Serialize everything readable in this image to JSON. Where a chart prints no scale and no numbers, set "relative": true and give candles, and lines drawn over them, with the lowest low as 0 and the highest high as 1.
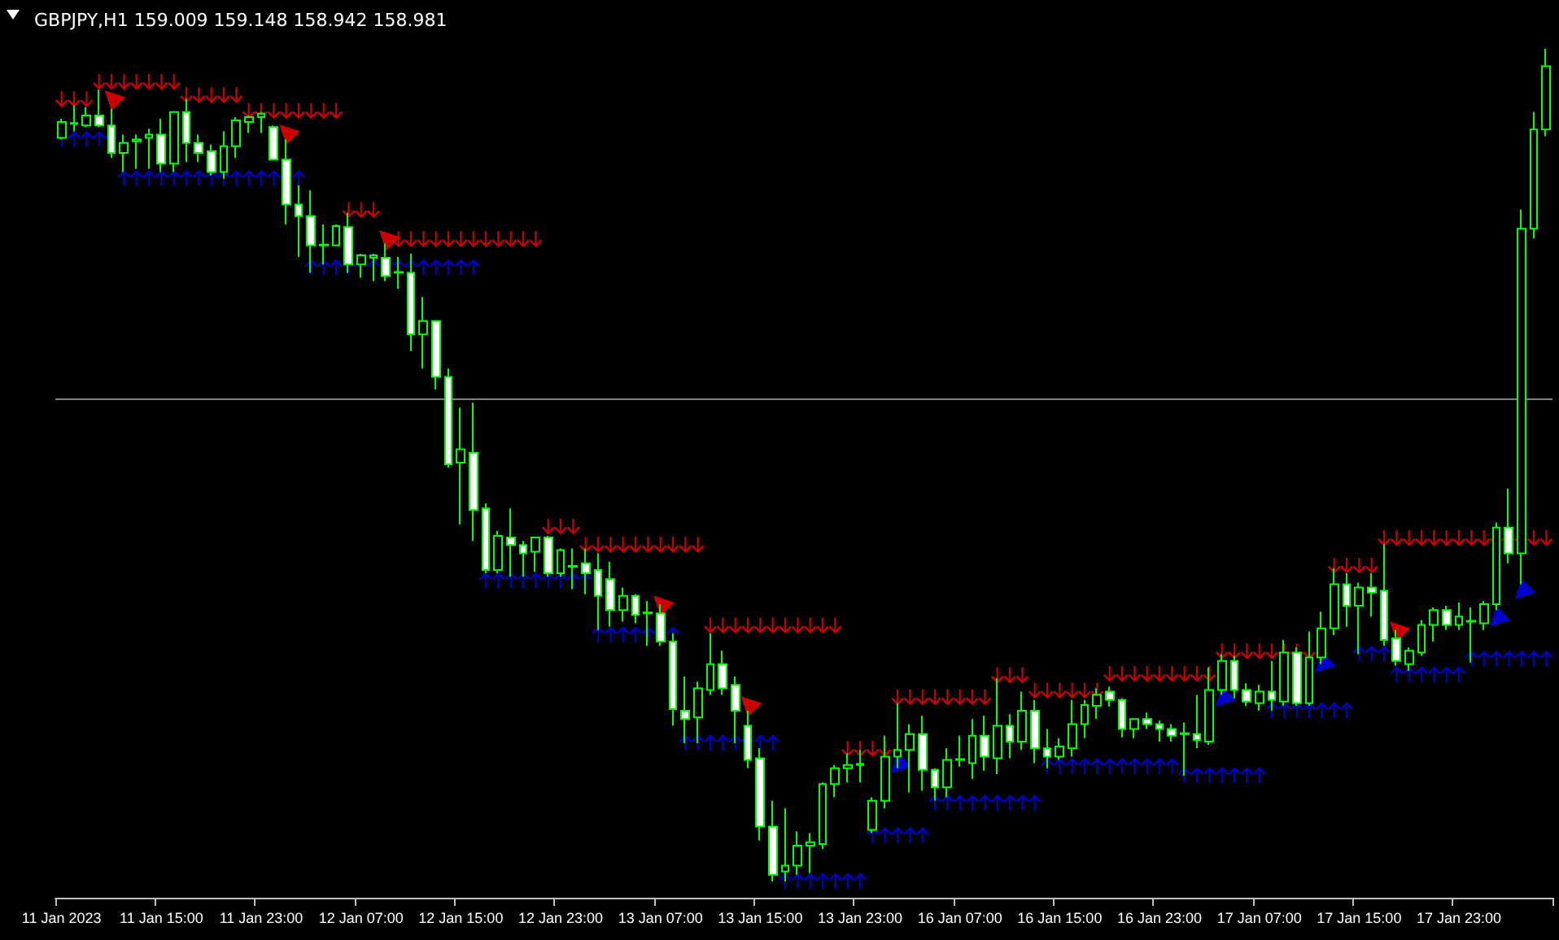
{
  "chart_data": {
    "type": "candlestick",
    "title": "GBPJPY,H1 159.009 159.148 158.942 158.981",
    "relative": true,
    "color": "#00ff00",
    "categories": [
      "11 Jan 2023",
      null,
      null,
      null,
      null,
      null,
      null,
      null,
      "11 Jan 15:00",
      null,
      null,
      null,
      null,
      null,
      null,
      null,
      "11 Jan 23:00",
      null,
      null,
      null,
      null,
      null,
      null,
      null,
      "12 Jan 07:00",
      null,
      null,
      null,
      null,
      null,
      null,
      null,
      "12 Jan 15:00",
      null,
      null,
      null,
      null,
      null,
      null,
      null,
      "12 Jan 23:00",
      null,
      null,
      null,
      null,
      null,
      null,
      null,
      "13 Jan 07:00",
      null,
      null,
      null,
      null,
      null,
      null,
      null,
      "13 Jan 15:00",
      null,
      null,
      null,
      null,
      null,
      null,
      null,
      "13 Jan 23:00",
      null,
      null,
      null,
      null,
      null,
      null,
      null,
      "16 Jan 07:00",
      null,
      null,
      null,
      null,
      null,
      null,
      null,
      "16 Jan 15:00",
      null,
      null,
      null,
      null,
      null,
      null,
      null,
      "16 Jan 23:00",
      null,
      null,
      null,
      null,
      null,
      null,
      null,
      "17 Jan 07:00",
      null,
      null,
      null,
      null,
      null,
      null,
      null,
      "17 Jan 15:00",
      null,
      null,
      null,
      null,
      null,
      null,
      null,
      "17 Jan 23:00",
      null,
      null,
      null,
      null,
      null,
      null,
      null
    ],
    "ohlc": [
      [
        0.893,
        0.916,
        0.891,
        0.912
      ],
      [
        0.91,
        0.932,
        0.901,
        0.911
      ],
      [
        0.908,
        0.93,
        0.906,
        0.92
      ],
      [
        0.92,
        0.951,
        0.906,
        0.908
      ],
      [
        0.908,
        0.928,
        0.869,
        0.875
      ],
      [
        0.875,
        0.897,
        0.852,
        0.887
      ],
      [
        0.889,
        0.897,
        0.856,
        0.891
      ],
      [
        0.893,
        0.904,
        0.856,
        0.897
      ],
      [
        0.897,
        0.916,
        0.852,
        0.862
      ],
      [
        0.862,
        0.924,
        0.852,
        0.924
      ],
      [
        0.924,
        0.94,
        0.864,
        0.887
      ],
      [
        0.887,
        0.897,
        0.864,
        0.875
      ],
      [
        0.877,
        0.885,
        0.848,
        0.852
      ],
      [
        0.852,
        0.901,
        0.844,
        0.883
      ],
      [
        0.883,
        0.918,
        0.869,
        0.914
      ],
      [
        0.912,
        0.92,
        0.899,
        0.918
      ],
      [
        0.918,
        0.924,
        0.899,
        0.922
      ],
      [
        0.906,
        0.908,
        0.867,
        0.867
      ],
      [
        0.867,
        0.891,
        0.789,
        0.813
      ],
      [
        0.813,
        0.836,
        0.75,
        0.799
      ],
      [
        0.799,
        0.83,
        0.731,
        0.764
      ],
      [
        0.764,
        0.789,
        0.741,
        0.765
      ],
      [
        0.764,
        0.789,
        0.764,
        0.787
      ],
      [
        0.786,
        0.803,
        0.731,
        0.741
      ],
      [
        0.741,
        0.754,
        0.725,
        0.752
      ],
      [
        0.749,
        0.754,
        0.721,
        0.752
      ],
      [
        0.749,
        0.766,
        0.721,
        0.727
      ],
      [
        0.731,
        0.75,
        0.712,
        0.732
      ],
      [
        0.731,
        0.754,
        0.637,
        0.657
      ],
      [
        0.657,
        0.702,
        0.616,
        0.673
      ],
      [
        0.673,
        0.674,
        0.591,
        0.606
      ],
      [
        0.606,
        0.616,
        0.497,
        0.501
      ],
      [
        0.503,
        0.569,
        0.429,
        0.519
      ],
      [
        0.515,
        0.575,
        0.409,
        0.446
      ],
      [
        0.448,
        0.454,
        0.37,
        0.374
      ],
      [
        0.374,
        0.421,
        0.37,
        0.415
      ],
      [
        0.413,
        0.448,
        0.366,
        0.404
      ],
      [
        0.404,
        0.409,
        0.366,
        0.394
      ],
      [
        0.396,
        0.413,
        0.372,
        0.413
      ],
      [
        0.413,
        0.415,
        0.366,
        0.37
      ],
      [
        0.37,
        0.4,
        0.366,
        0.398
      ],
      [
        0.378,
        0.4,
        0.351,
        0.379
      ],
      [
        0.382,
        0.4,
        0.345,
        0.37
      ],
      [
        0.374,
        0.394,
        0.302,
        0.343
      ],
      [
        0.363,
        0.384,
        0.306,
        0.326
      ],
      [
        0.326,
        0.353,
        0.312,
        0.343
      ],
      [
        0.343,
        0.345,
        0.31,
        0.32
      ],
      [
        0.322,
        0.337,
        0.283,
        0.323
      ],
      [
        0.322,
        0.333,
        0.283,
        0.288
      ],
      [
        0.288,
        0.298,
        0.187,
        0.207
      ],
      [
        0.205,
        0.246,
        0.166,
        0.195
      ],
      [
        0.197,
        0.24,
        0.166,
        0.232
      ],
      [
        0.23,
        0.298,
        0.224,
        0.261
      ],
      [
        0.261,
        0.277,
        0.224,
        0.232
      ],
      [
        0.236,
        0.246,
        0.166,
        0.205
      ],
      [
        0.187,
        0.205,
        0.136,
        0.146
      ],
      [
        0.148,
        0.16,
        0.049,
        0.066
      ],
      [
        0.066,
        0.097,
        0,
        0.008
      ],
      [
        0.012,
        0.088,
        0,
        0.019
      ],
      [
        0.019,
        0.06,
        0.008,
        0.043
      ],
      [
        0.043,
        0.058,
        0.01,
        0.047
      ],
      [
        0.045,
        0.119,
        0.039,
        0.117
      ],
      [
        0.117,
        0.14,
        0.101,
        0.136
      ],
      [
        0.136,
        0.154,
        0.119,
        0.14
      ],
      [
        0.14,
        0.158,
        0.119,
        0.141
      ],
      [
        0.062,
        0.101,
        0.058,
        0.097
      ],
      [
        0.097,
        0.175,
        0.088,
        0.15
      ],
      [
        0.15,
        0.214,
        0.136,
        0.158
      ],
      [
        0.158,
        0.189,
        0.107,
        0.177
      ],
      [
        0.177,
        0.199,
        0.109,
        0.134
      ],
      [
        0.134,
        0.136,
        0.097,
        0.113
      ],
      [
        0.113,
        0.16,
        0.101,
        0.146
      ],
      [
        0.146,
        0.175,
        0.138,
        0.147
      ],
      [
        0.142,
        0.195,
        0.123,
        0.175
      ],
      [
        0.175,
        0.199,
        0.133,
        0.15
      ],
      [
        0.148,
        0.244,
        0.129,
        0.187
      ],
      [
        0.187,
        0.201,
        0.148,
        0.168
      ],
      [
        0.168,
        0.228,
        0.158,
        0.205
      ],
      [
        0.205,
        0.218,
        0.142,
        0.16
      ],
      [
        0.16,
        0.183,
        0.136,
        0.15
      ],
      [
        0.15,
        0.172,
        0.146,
        0.162
      ],
      [
        0.16,
        0.218,
        0.15,
        0.189
      ],
      [
        0.189,
        0.218,
        0.172,
        0.212
      ],
      [
        0.211,
        0.232,
        0.195,
        0.224
      ],
      [
        0.228,
        0.234,
        0.21,
        0.218
      ],
      [
        0.218,
        0.22,
        0.173,
        0.183
      ],
      [
        0.183,
        0.195,
        0.172,
        0.195
      ],
      [
        0.195,
        0.203,
        0.183,
        0.189
      ],
      [
        0.189,
        0.193,
        0.168,
        0.183
      ],
      [
        0.183,
        0.189,
        0.168,
        0.175
      ],
      [
        0.177,
        0.191,
        0.127,
        0.178
      ],
      [
        0.177,
        0.224,
        0.16,
        0.17
      ],
      [
        0.168,
        0.257,
        0.164,
        0.23
      ],
      [
        0.23,
        0.273,
        0.224,
        0.265
      ],
      [
        0.265,
        0.271,
        0.22,
        0.23
      ],
      [
        0.23,
        0.238,
        0.211,
        0.216
      ],
      [
        0.214,
        0.236,
        0.205,
        0.228
      ],
      [
        0.228,
        0.265,
        0.205,
        0.218
      ],
      [
        0.216,
        0.29,
        0.211,
        0.275
      ],
      [
        0.275,
        0.281,
        0.211,
        0.214
      ],
      [
        0.214,
        0.3,
        0.211,
        0.269
      ],
      [
        0.269,
        0.324,
        0.261,
        0.304
      ],
      [
        0.304,
        0.376,
        0.296,
        0.357
      ],
      [
        0.357,
        0.37,
        0.306,
        0.331
      ],
      [
        0.331,
        0.359,
        0.273,
        0.353
      ],
      [
        0.353,
        0.37,
        0.318,
        0.347
      ],
      [
        0.349,
        0.405,
        0.283,
        0.29
      ],
      [
        0.292,
        0.302,
        0.259,
        0.265
      ],
      [
        0.261,
        0.281,
        0.253,
        0.277
      ],
      [
        0.275,
        0.314,
        0.271,
        0.308
      ],
      [
        0.308,
        0.329,
        0.288,
        0.326
      ],
      [
        0.326,
        0.331,
        0.302,
        0.308
      ],
      [
        0.308,
        0.335,
        0.302,
        0.318
      ],
      [
        0.312,
        0.329,
        0.263,
        0.313
      ],
      [
        0.31,
        0.337,
        0.302,
        0.333
      ],
      [
        0.333,
        0.431,
        0.326,
        0.425
      ],
      [
        0.425,
        0.472,
        0.382,
        0.394
      ],
      [
        0.394,
        0.807,
        0.357,
        0.784
      ],
      [
        0.784,
        0.924,
        0.772,
        0.903
      ],
      [
        0.903,
        1,
        0.895,
        0.979
      ]
    ],
    "series": [
      {
        "type": "scatter",
        "color": "#ff0000",
        "marker": "cross",
        "values": [
          0.94,
          0.94,
          0.94,
          0.961,
          0.961,
          0.961,
          0.961,
          0.961,
          0.961,
          0.961,
          0.945,
          0.945,
          0.945,
          0.945,
          0.945,
          0.926,
          0.926,
          0.926,
          0.926,
          0.926,
          0.926,
          0.926,
          0.926,
          0.807,
          0.807,
          0.807,
          null,
          0.772,
          0.772,
          0.772,
          0.772,
          0.772,
          0.772,
          0.772,
          0.772,
          0.772,
          0.772,
          0.772,
          0.772,
          0.427,
          0.427,
          0.427,
          0.405,
          0.405,
          0.405,
          0.405,
          0.405,
          0.405,
          0.405,
          0.405,
          0.405,
          0.405,
          0.308,
          0.308,
          0.308,
          0.308,
          0.308,
          0.308,
          0.308,
          0.308,
          0.308,
          0.308,
          0.308,
          0.16,
          0.16,
          0.16,
          0.16,
          0.222,
          0.222,
          0.222,
          0.222,
          0.222,
          0.222,
          0.222,
          0.222,
          0.248,
          0.248,
          0.248,
          0.23,
          0.23,
          0.23,
          0.23,
          0.23,
          0.23,
          0.25,
          0.25,
          0.25,
          0.25,
          0.25,
          0.25,
          0.25,
          0.25,
          0.25,
          0.277,
          0.277,
          0.277,
          0.277,
          0.277,
          0.277,
          0.277,
          0.277,
          0.277,
          0.38,
          0.38,
          0.38,
          0.38,
          0.413,
          0.413,
          0.413,
          0.413,
          0.413,
          0.413,
          0.413,
          0.413,
          0.413,
          0.413,
          0.413,
          0.413,
          0.413,
          0.413
        ]
      },
      {
        "type": "scatter",
        "color": "#0000ff",
        "marker": "cross",
        "values": [
          0.891,
          0.891,
          0.891,
          0.891,
          0.891,
          0.844,
          0.844,
          0.844,
          0.844,
          0.844,
          0.844,
          0.844,
          0.844,
          0.844,
          0.844,
          0.844,
          0.844,
          0.844,
          0.844,
          0.844,
          0.737,
          0.737,
          0.737,
          0.737,
          0.737,
          0.737,
          null,
          0.737,
          0.737,
          0.737,
          0.737,
          0.737,
          0.737,
          0.737,
          0.361,
          0.361,
          0.361,
          0.361,
          0.361,
          0.361,
          0.361,
          0.361,
          0.361,
          0.296,
          0.296,
          0.296,
          0.296,
          0.296,
          0.296,
          0.296,
          0.166,
          0.166,
          0.166,
          0.166,
          0.166,
          0.166,
          0.166,
          0.166,
          0,
          0,
          0,
          0,
          0,
          0,
          0,
          0.055,
          0.055,
          0.055,
          0.055,
          0.055,
          0.094,
          0.094,
          0.094,
          0.094,
          0.094,
          0.094,
          0.094,
          0.094,
          0.094,
          0.138,
          0.138,
          0.138,
          0.138,
          0.138,
          0.138,
          0.138,
          0.138,
          0.138,
          0.138,
          0.138,
          0.127,
          0.127,
          0.127,
          0.127,
          0.127,
          0.127,
          0.127,
          0.205,
          0.205,
          0.205,
          0.205,
          0.205,
          0.205,
          0.205,
          0.273,
          0.273,
          0.273,
          0.248,
          0.248,
          0.248,
          0.248,
          0.248,
          0.248,
          0.267,
          0.267,
          0.267,
          0.267,
          0.267,
          0.267,
          0.267
        ]
      },
      {
        "type": "scatter",
        "color": "#ff0000",
        "marker": "triangle",
        "values": [
          null,
          null,
          null,
          null,
          0.942,
          null,
          null,
          null,
          null,
          null,
          null,
          null,
          null,
          null,
          null,
          null,
          null,
          null,
          0.901,
          null,
          null,
          null,
          null,
          null,
          null,
          null,
          0.774,
          null,
          null,
          null,
          null,
          null,
          null,
          null,
          null,
          null,
          null,
          null,
          null,
          null,
          null,
          null,
          null,
          null,
          null,
          null,
          null,
          null,
          0.335,
          null,
          null,
          null,
          null,
          null,
          null,
          0.214,
          null,
          null,
          null,
          null,
          null,
          null,
          null,
          null,
          null,
          null,
          null,
          null,
          null,
          null,
          null,
          null,
          null,
          null,
          null,
          null,
          null,
          null,
          null,
          null,
          null,
          null,
          null,
          null,
          null,
          null,
          null,
          null,
          null,
          null,
          null,
          null,
          null,
          null,
          null,
          null,
          null,
          null,
          null,
          null,
          null,
          null,
          null,
          null,
          null,
          null,
          null,
          0.304,
          null,
          null,
          null,
          null,
          null,
          null,
          null,
          null,
          null,
          null,
          null,
          null
        ]
      },
      {
        "type": "scatter",
        "color": "#0000ff",
        "marker": "triangle",
        "values": [
          null,
          null,
          null,
          null,
          null,
          null,
          null,
          null,
          null,
          null,
          null,
          null,
          null,
          null,
          null,
          null,
          null,
          null,
          null,
          null,
          null,
          null,
          null,
          null,
          null,
          null,
          null,
          null,
          null,
          null,
          null,
          null,
          null,
          null,
          null,
          null,
          null,
          null,
          null,
          null,
          null,
          null,
          null,
          null,
          null,
          null,
          null,
          null,
          null,
          null,
          null,
          null,
          null,
          null,
          null,
          null,
          null,
          null,
          null,
          null,
          null,
          null,
          null,
          null,
          null,
          null,
          null,
          0.138,
          null,
          null,
          null,
          null,
          null,
          null,
          null,
          null,
          null,
          null,
          null,
          null,
          null,
          null,
          null,
          null,
          null,
          null,
          null,
          null,
          null,
          null,
          null,
          null,
          null,
          0.218,
          null,
          null,
          null,
          null,
          null,
          null,
          null,
          0.259,
          null,
          null,
          null,
          null,
          null,
          null,
          null,
          null,
          null,
          null,
          null,
          null,
          null,
          0.314,
          null,
          0.347,
          null,
          null
        ]
      }
    ],
    "ref_lines": [
      {
        "axis": "y",
        "value": 0.577,
        "color": "#808080"
      }
    ]
  }
}
